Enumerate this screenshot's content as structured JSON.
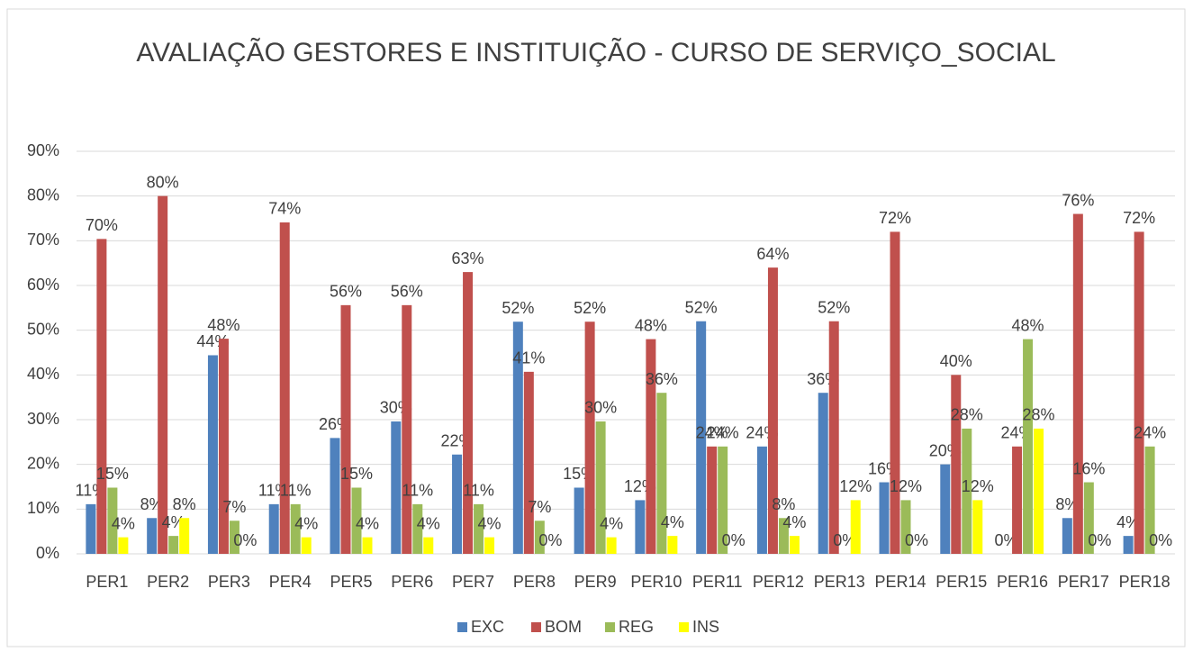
{
  "chart_data": {
    "type": "bar",
    "title": "AVALIAÇÃO GESTORES E INSTITUIÇÃO - CURSO DE SERVIÇO_SOCIAL",
    "categories": [
      "PER1",
      "PER2",
      "PER3",
      "PER4",
      "PER5",
      "PER6",
      "PER7",
      "PER8",
      "PER9",
      "PER10",
      "PER11",
      "PER12",
      "PER13",
      "PER14",
      "PER15",
      "PER16",
      "PER17",
      "PER18"
    ],
    "series": [
      {
        "name": "EXC",
        "color": "#4f81bd",
        "values": [
          11.1,
          8,
          44.4,
          11.1,
          25.9,
          29.6,
          22.2,
          51.9,
          14.8,
          12,
          52,
          24,
          36,
          16,
          20,
          0,
          8,
          4
        ],
        "value_labels": [
          "11%",
          "8%",
          "44%",
          "11%",
          "26%",
          "30%",
          "22%",
          "52%",
          "15%",
          "12%",
          "52%",
          "24%",
          "36%",
          "16%",
          "20%",
          "0%",
          "8%",
          "4%"
        ]
      },
      {
        "name": "BOM",
        "color": "#c0504d",
        "values": [
          70.4,
          80,
          48.1,
          74.1,
          55.6,
          55.6,
          63,
          40.7,
          51.9,
          48,
          24,
          64,
          52,
          72,
          40,
          24,
          76,
          72
        ],
        "value_labels": [
          "70%",
          "80%",
          "48%",
          "74%",
          "56%",
          "56%",
          "63%",
          "41%",
          "52%",
          "48%",
          "24%",
          "64%",
          "52%",
          "72%",
          "40%",
          "24%",
          "76%",
          "72%"
        ]
      },
      {
        "name": "REG",
        "color": "#9bbb59",
        "values": [
          14.8,
          4,
          7.4,
          11.1,
          14.8,
          11.1,
          11.1,
          7.4,
          29.6,
          36,
          24,
          8,
          0,
          12,
          28,
          48,
          16,
          24
        ],
        "value_labels": [
          "15%",
          "4%",
          "7%",
          "11%",
          "15%",
          "11%",
          "11%",
          "7%",
          "30%",
          "36%",
          "24%",
          "8%",
          "0%",
          "12%",
          "28%",
          "48%",
          "16%",
          "24%"
        ]
      },
      {
        "name": "INS",
        "color": "#ffff00",
        "values": [
          3.7,
          8,
          0,
          3.7,
          3.7,
          3.7,
          3.7,
          0,
          3.7,
          4,
          0,
          4,
          12,
          0,
          12,
          28,
          0,
          0
        ],
        "value_labels": [
          "4%",
          "8%",
          "0%",
          "4%",
          "4%",
          "4%",
          "4%",
          "0%",
          "4%",
          "4%",
          "0%",
          "4%",
          "12%",
          "0%",
          "12%",
          "28%",
          "0%",
          "0%"
        ]
      }
    ],
    "ylim": [
      0,
      90
    ],
    "yticks": [
      {
        "value": 0,
        "label": "0%"
      },
      {
        "value": 10,
        "label": "10%"
      },
      {
        "value": 20,
        "label": "20%"
      },
      {
        "value": 30,
        "label": "30%"
      },
      {
        "value": 40,
        "label": "40%"
      },
      {
        "value": 50,
        "label": "50%"
      },
      {
        "value": 60,
        "label": "60%"
      },
      {
        "value": 70,
        "label": "70%"
      },
      {
        "value": 80,
        "label": "80%"
      },
      {
        "value": 90,
        "label": "90%"
      }
    ],
    "grid": true,
    "legend": "bottom"
  }
}
